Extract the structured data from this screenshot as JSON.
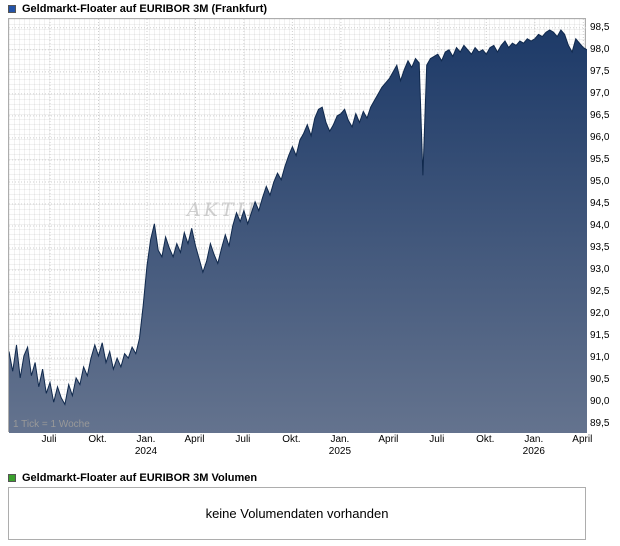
{
  "watermark": "AKTIENCHECK.DE",
  "volume": {
    "legend": "Geldmarkt-Floater auf EURIBOR 3M Volumen",
    "message": "keine Volumendaten vorhanden",
    "legend_color": "#3aa02c"
  },
  "chart_data": {
    "type": "area",
    "title": "Geldmarkt-Floater auf EURIBOR 3M (Frankfurt)",
    "tick_note": "1 Tick = 1 Woche",
    "legend_position": "top-left",
    "grid": true,
    "ylim": [
      89.3,
      98.7
    ],
    "line_color": "#10294d",
    "fill_top": "#1d3a68",
    "fill_bottom": "#64738e",
    "y_ticks": [
      {
        "value": 89.5,
        "label": "89,5"
      },
      {
        "value": 90.0,
        "label": "90,0"
      },
      {
        "value": 90.5,
        "label": "90,5"
      },
      {
        "value": 91.0,
        "label": "91,0"
      },
      {
        "value": 91.5,
        "label": "91,5"
      },
      {
        "value": 92.0,
        "label": "92,0"
      },
      {
        "value": 92.5,
        "label": "92,5"
      },
      {
        "value": 93.0,
        "label": "93,0"
      },
      {
        "value": 93.5,
        "label": "93,5"
      },
      {
        "value": 94.0,
        "label": "94,0"
      },
      {
        "value": 94.5,
        "label": "94,5"
      },
      {
        "value": 95.0,
        "label": "95,0"
      },
      {
        "value": 95.5,
        "label": "95,5"
      },
      {
        "value": 96.0,
        "label": "96,0"
      },
      {
        "value": 96.5,
        "label": "96,5"
      },
      {
        "value": 97.0,
        "label": "97,0"
      },
      {
        "value": 97.5,
        "label": "97,5"
      },
      {
        "value": 98.0,
        "label": "98,0"
      },
      {
        "value": 98.5,
        "label": "98,5"
      }
    ],
    "x_ticks": [
      {
        "label": "Juli",
        "week": 11
      },
      {
        "label": "Okt.",
        "week": 24
      },
      {
        "label": "Jan.",
        "sub": "2024",
        "week": 37
      },
      {
        "label": "April",
        "week": 50
      },
      {
        "label": "Juli",
        "week": 63
      },
      {
        "label": "Okt.",
        "week": 76
      },
      {
        "label": "Jan.",
        "sub": "2025",
        "week": 89
      },
      {
        "label": "April",
        "week": 102
      },
      {
        "label": "Juli",
        "week": 115
      },
      {
        "label": "Okt.",
        "week": 128
      },
      {
        "label": "Jan.",
        "sub": "2026",
        "week": 141
      },
      {
        "label": "April",
        "week": 154
      }
    ],
    "x_unit": "week",
    "values": [
      91.15,
      90.7,
      91.3,
      90.55,
      91.05,
      91.25,
      90.6,
      90.9,
      90.35,
      90.75,
      90.2,
      90.45,
      90.0,
      90.35,
      90.1,
      89.95,
      90.4,
      90.15,
      90.55,
      90.4,
      90.8,
      90.6,
      91.0,
      91.3,
      91.05,
      91.35,
      90.9,
      91.15,
      90.75,
      91.0,
      90.8,
      91.1,
      91.0,
      91.25,
      91.1,
      91.45,
      92.2,
      93.1,
      93.7,
      94.05,
      93.45,
      93.3,
      93.75,
      93.5,
      93.3,
      93.6,
      93.4,
      93.85,
      93.6,
      93.95,
      93.55,
      93.25,
      92.95,
      93.2,
      93.6,
      93.35,
      93.15,
      93.5,
      93.8,
      93.55,
      94.0,
      94.3,
      94.1,
      94.35,
      94.05,
      94.3,
      94.55,
      94.35,
      94.65,
      94.9,
      94.7,
      95.0,
      95.2,
      95.05,
      95.35,
      95.6,
      95.8,
      95.6,
      95.95,
      96.1,
      96.3,
      96.05,
      96.45,
      96.65,
      96.7,
      96.35,
      96.15,
      96.3,
      96.5,
      96.55,
      96.65,
      96.4,
      96.25,
      96.55,
      96.35,
      96.6,
      96.45,
      96.7,
      96.85,
      97.0,
      97.15,
      97.25,
      97.35,
      97.5,
      97.65,
      97.3,
      97.55,
      97.75,
      97.6,
      97.8,
      97.7,
      95.15,
      97.65,
      97.8,
      97.85,
      97.9,
      97.75,
      97.95,
      98.0,
      97.85,
      98.05,
      97.95,
      98.1,
      98.0,
      97.9,
      98.05,
      97.95,
      98.0,
      97.9,
      98.05,
      98.1,
      97.95,
      98.1,
      98.2,
      98.05,
      98.15,
      98.1,
      98.2,
      98.15,
      98.25,
      98.2,
      98.25,
      98.35,
      98.3,
      98.4,
      98.45,
      98.4,
      98.3,
      98.45,
      98.35,
      98.1,
      97.95,
      98.25,
      98.15,
      98.05,
      98.0
    ]
  }
}
